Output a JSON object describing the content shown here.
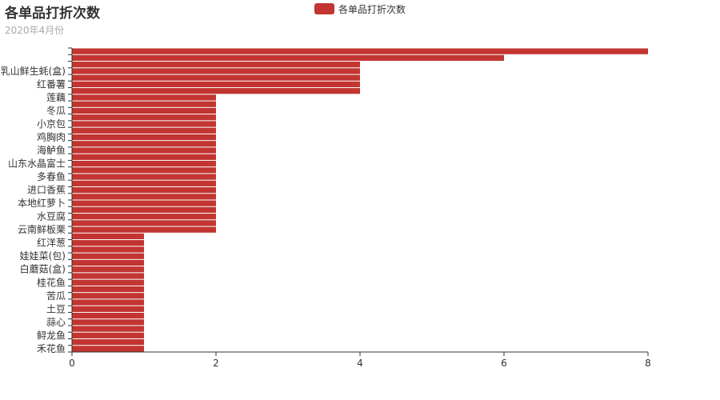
{
  "chart_data": {
    "type": "bar",
    "orientation": "horizontal",
    "title": "各单品打折次数",
    "subtitle": "2020年4月份",
    "legend": [
      "各单品打折次数"
    ],
    "legend_position": "top-center",
    "series": [
      {
        "name": "各单品打折次数",
        "color": "#c23531",
        "values": [
          1,
          1,
          1,
          1,
          1,
          1,
          1,
          1,
          1,
          1,
          1,
          1,
          1,
          1,
          1,
          1,
          1,
          1,
          2,
          2,
          2,
          2,
          2,
          2,
          2,
          2,
          2,
          2,
          2,
          2,
          2,
          2,
          2,
          2,
          2,
          2,
          2,
          2,
          2,
          4,
          4,
          4,
          4,
          4,
          6,
          8
        ]
      }
    ],
    "category_labels": [
      {
        "index": 0,
        "label": "禾花鱼"
      },
      {
        "index": 2,
        "label": "鲟龙鱼"
      },
      {
        "index": 4,
        "label": "蒜心"
      },
      {
        "index": 6,
        "label": "土豆"
      },
      {
        "index": 8,
        "label": "苦瓜"
      },
      {
        "index": 10,
        "label": "桂花鱼"
      },
      {
        "index": 12,
        "label": "白蘑菇(盒)"
      },
      {
        "index": 14,
        "label": "娃娃菜(包)"
      },
      {
        "index": 16,
        "label": "红洋葱"
      },
      {
        "index": 18,
        "label": "云南鲜板栗"
      },
      {
        "index": 20,
        "label": "水豆腐"
      },
      {
        "index": 22,
        "label": "本地红萝卜"
      },
      {
        "index": 24,
        "label": "进口香蕉"
      },
      {
        "index": 26,
        "label": "多春鱼"
      },
      {
        "index": 28,
        "label": "山东水晶富士"
      },
      {
        "index": 30,
        "label": "海鲈鱼"
      },
      {
        "index": 32,
        "label": "鸡胸肉"
      },
      {
        "index": 34,
        "label": "小京包"
      },
      {
        "index": 36,
        "label": "冬瓜"
      },
      {
        "index": 38,
        "label": "莲藕"
      },
      {
        "index": 40,
        "label": "红番薯"
      },
      {
        "index": 42,
        "label": "乳山鲜生蚝(盒)"
      }
    ],
    "x_ticks": [
      0,
      2,
      4,
      6,
      8
    ],
    "xlim": [
      0,
      8
    ],
    "grid": false,
    "axis_color": "#333333"
  }
}
